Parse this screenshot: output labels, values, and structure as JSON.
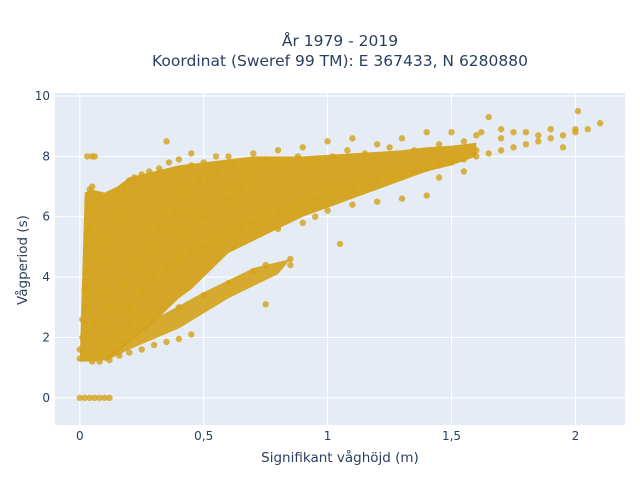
{
  "chart_data": {
    "type": "scatter",
    "title_line1": "År 1979 - 2019",
    "title_line2": "Koordinat (Sweref 99 TM): E 367433, N 6280880",
    "xlabel": "Signifikant våghöjd (m)",
    "ylabel": "Vågperiod (s)",
    "xlim": [
      -0.1,
      2.2
    ],
    "ylim": [
      -0.9,
      10.1
    ],
    "x_ticks": [
      0,
      0.5,
      1,
      1.5,
      2
    ],
    "x_tick_labels": [
      "0",
      "0,5",
      "1",
      "1,5",
      "2"
    ],
    "y_ticks": [
      0,
      2,
      4,
      6,
      8,
      10
    ],
    "y_tick_labels": [
      "0",
      "2",
      "4",
      "6",
      "8",
      "10"
    ],
    "grid": true,
    "legend": "none",
    "colors": {
      "marker": "#d4a21a",
      "plot_bg": "#e5ecf6",
      "grid": "#ffffff",
      "text": "#2a3f5f"
    },
    "series": [
      {
        "points": [
          [
            0.0,
            0.0
          ],
          [
            0.02,
            0.0
          ],
          [
            0.04,
            0.0
          ],
          [
            0.06,
            0.0
          ],
          [
            0.08,
            0.0
          ],
          [
            0.1,
            0.0
          ],
          [
            0.12,
            0.0
          ],
          [
            0.0,
            1.3
          ],
          [
            0.0,
            1.6
          ],
          [
            0.01,
            2.0
          ],
          [
            0.01,
            2.6
          ],
          [
            0.02,
            3.0
          ],
          [
            0.02,
            3.6
          ],
          [
            0.03,
            4.2
          ],
          [
            0.03,
            5.0
          ],
          [
            0.04,
            5.6
          ],
          [
            0.04,
            6.3
          ],
          [
            0.05,
            7.0
          ],
          [
            0.05,
            8.0
          ],
          [
            0.04,
            6.9
          ],
          [
            0.03,
            5.4
          ],
          [
            0.05,
            1.2
          ],
          [
            0.08,
            1.2
          ],
          [
            0.12,
            1.25
          ],
          [
            0.16,
            1.4
          ],
          [
            0.2,
            1.5
          ],
          [
            0.25,
            1.6
          ],
          [
            0.3,
            1.75
          ],
          [
            0.35,
            1.85
          ],
          [
            0.4,
            1.95
          ],
          [
            0.45,
            2.1
          ],
          [
            0.06,
            2.5
          ],
          [
            0.08,
            3.5
          ],
          [
            0.1,
            4.5
          ],
          [
            0.12,
            5.2
          ],
          [
            0.14,
            6.0
          ],
          [
            0.15,
            6.8
          ],
          [
            0.18,
            7.0
          ],
          [
            0.2,
            7.2
          ],
          [
            0.22,
            7.3
          ],
          [
            0.25,
            7.4
          ],
          [
            0.28,
            7.5
          ],
          [
            0.32,
            7.6
          ],
          [
            0.36,
            7.8
          ],
          [
            0.4,
            7.9
          ],
          [
            0.45,
            7.7
          ],
          [
            0.5,
            7.8
          ],
          [
            0.55,
            8.0
          ],
          [
            0.6,
            8.0
          ],
          [
            0.7,
            8.1
          ],
          [
            0.8,
            8.2
          ],
          [
            0.9,
            8.3
          ],
          [
            1.0,
            8.5
          ],
          [
            1.1,
            8.6
          ],
          [
            1.2,
            8.4
          ],
          [
            1.3,
            8.6
          ],
          [
            1.4,
            8.8
          ],
          [
            1.5,
            8.8
          ],
          [
            1.6,
            8.7
          ],
          [
            1.7,
            8.9
          ],
          [
            1.8,
            8.8
          ],
          [
            1.9,
            8.9
          ],
          [
            2.0,
            8.9
          ],
          [
            0.2,
            3.0
          ],
          [
            0.25,
            3.5
          ],
          [
            0.3,
            4.0
          ],
          [
            0.35,
            4.3
          ],
          [
            0.4,
            4.6
          ],
          [
            0.45,
            4.8
          ],
          [
            0.5,
            5.0
          ],
          [
            0.55,
            5.2
          ],
          [
            0.6,
            5.4
          ],
          [
            0.65,
            5.6
          ],
          [
            0.7,
            5.8
          ],
          [
            0.75,
            6.0
          ],
          [
            0.8,
            6.2
          ],
          [
            0.85,
            6.3
          ],
          [
            0.9,
            6.5
          ],
          [
            0.95,
            6.6
          ],
          [
            1.0,
            6.8
          ],
          [
            1.05,
            6.9
          ],
          [
            1.1,
            7.0
          ],
          [
            1.15,
            7.1
          ],
          [
            1.2,
            7.2
          ],
          [
            1.25,
            7.3
          ],
          [
            1.3,
            7.4
          ],
          [
            1.35,
            7.5
          ],
          [
            1.4,
            7.6
          ],
          [
            1.45,
            7.7
          ],
          [
            1.5,
            7.8
          ],
          [
            1.55,
            7.9
          ],
          [
            1.6,
            8.0
          ],
          [
            1.65,
            8.1
          ],
          [
            1.7,
            8.2
          ],
          [
            1.75,
            8.3
          ],
          [
            1.8,
            8.4
          ],
          [
            1.85,
            8.5
          ],
          [
            1.9,
            8.6
          ],
          [
            1.95,
            8.7
          ],
          [
            2.0,
            8.8
          ],
          [
            2.05,
            8.9
          ],
          [
            0.3,
            2.6
          ],
          [
            0.4,
            3.0
          ],
          [
            0.5,
            3.4
          ],
          [
            0.6,
            3.8
          ],
          [
            0.7,
            4.2
          ],
          [
            0.75,
            4.4
          ],
          [
            0.85,
            4.6
          ],
          [
            0.4,
            5.5
          ],
          [
            0.5,
            6.0
          ],
          [
            0.6,
            6.6
          ],
          [
            0.65,
            7.0
          ],
          [
            0.7,
            7.4
          ],
          [
            0.75,
            3.1
          ],
          [
            0.85,
            4.4
          ],
          [
            1.05,
            5.1
          ],
          [
            1.3,
            6.6
          ],
          [
            1.4,
            6.7
          ],
          [
            1.45,
            7.3
          ],
          [
            1.55,
            7.5
          ],
          [
            1.6,
            8.2
          ],
          [
            1.62,
            8.8
          ],
          [
            1.65,
            9.3
          ],
          [
            1.95,
            8.3
          ],
          [
            2.01,
            9.5
          ],
          [
            2.1,
            9.1
          ],
          [
            0.35,
            8.5
          ],
          [
            0.45,
            8.1
          ],
          [
            0.06,
            8.0
          ],
          [
            0.03,
            8.0
          ],
          [
            1.0,
            6.2
          ],
          [
            0.95,
            6.0
          ],
          [
            0.9,
            5.8
          ],
          [
            1.1,
            6.4
          ],
          [
            1.2,
            6.5
          ],
          [
            0.8,
            5.6
          ],
          [
            0.1,
            1.8
          ],
          [
            0.15,
            2.2
          ],
          [
            0.2,
            2.4
          ],
          [
            0.25,
            2.6
          ],
          [
            0.12,
            3.0
          ],
          [
            0.18,
            3.8
          ],
          [
            0.22,
            4.4
          ],
          [
            0.28,
            5.0
          ],
          [
            0.32,
            5.6
          ],
          [
            0.38,
            6.2
          ],
          [
            0.42,
            6.8
          ],
          [
            0.48,
            7.2
          ],
          [
            0.55,
            7.5
          ],
          [
            0.62,
            7.7
          ],
          [
            0.68,
            7.6
          ],
          [
            0.75,
            7.9
          ],
          [
            0.82,
            7.8
          ],
          [
            0.88,
            8.0
          ],
          [
            0.95,
            7.9
          ],
          [
            1.02,
            8.0
          ],
          [
            1.08,
            8.2
          ],
          [
            1.15,
            8.1
          ],
          [
            1.25,
            8.3
          ],
          [
            1.35,
            8.2
          ],
          [
            1.45,
            8.4
          ],
          [
            1.55,
            8.5
          ],
          [
            1.7,
            8.6
          ],
          [
            1.85,
            8.7
          ],
          [
            1.75,
            8.8
          ]
        ]
      }
    ]
  }
}
